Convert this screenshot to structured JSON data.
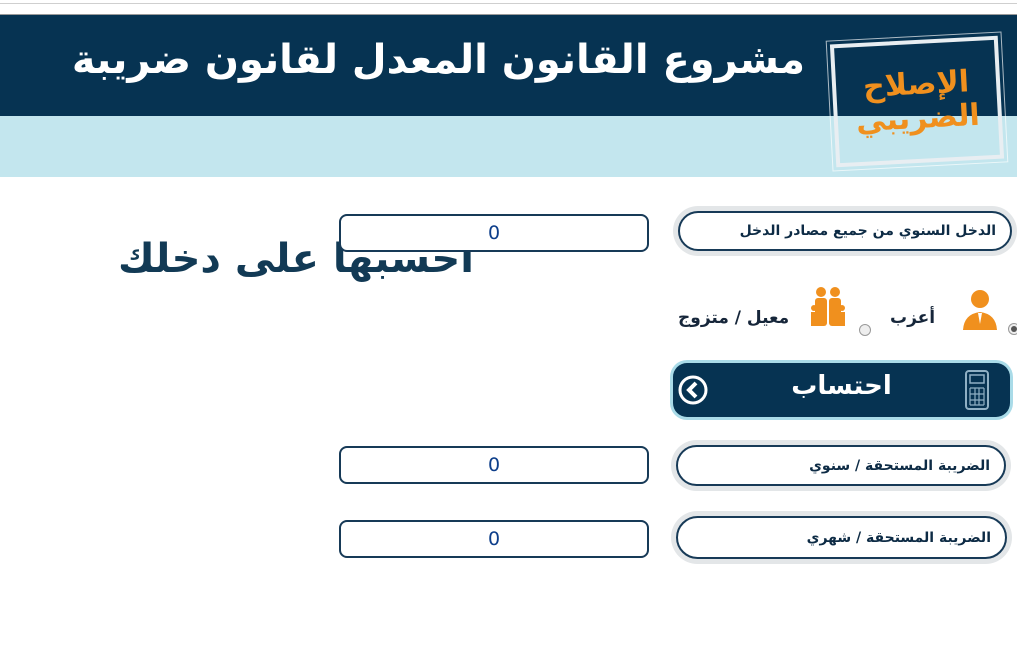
{
  "header": {
    "title": "مشروع القانون المعدل لقانون ضريبة",
    "subtitle": "احسبها على دخلك",
    "logo_line1": "الإصلاح",
    "logo_line2": "الضريبي"
  },
  "colors": {
    "navy": "#063352",
    "light_blue": "#c3e6ee",
    "orange": "#f0901e"
  },
  "form": {
    "income_label": "الدخل السنوي من جميع مصادر الدخل",
    "income_value": "0",
    "status_options": [
      {
        "label": "أعزب",
        "icon": "single-person-icon",
        "selected": true
      },
      {
        "label": "معيل / متزوج",
        "icon": "family-icon",
        "selected": false
      }
    ],
    "calculate_label": "احتساب",
    "annual_tax_label": "الضريبة المستحقة / سنوي",
    "annual_tax_value": "0",
    "monthly_tax_label": "الضريبة المستحقة / شهري",
    "monthly_tax_value": "0"
  }
}
